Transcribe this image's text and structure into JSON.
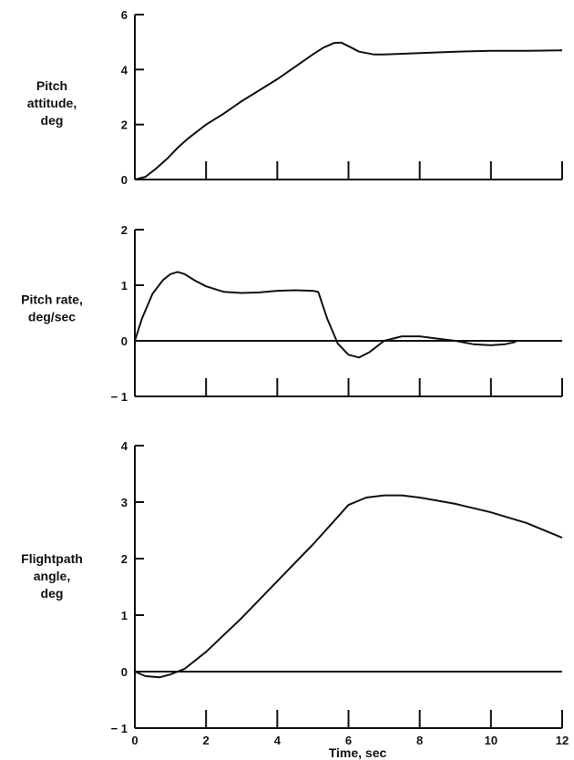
{
  "chart_data": [
    {
      "type": "line",
      "ylabel": [
        "Pitch",
        "attitude,",
        "deg"
      ],
      "ylim": [
        0,
        6
      ],
      "yticks": [
        0,
        2,
        4,
        6
      ],
      "xlim": [
        0,
        12
      ],
      "xticks": [
        0,
        2,
        4,
        6,
        8,
        10,
        12
      ],
      "zero_line": false,
      "series": [
        {
          "x": [
            0,
            0.3,
            0.6,
            0.9,
            1.2,
            1.5,
            2,
            2.5,
            3,
            3.5,
            4,
            4.5,
            5,
            5.3,
            5.6,
            5.8,
            6.0,
            6.3,
            6.7,
            7,
            8,
            9,
            10,
            11,
            12
          ],
          "values": [
            0,
            0.1,
            0.4,
            0.75,
            1.15,
            1.5,
            2.0,
            2.4,
            2.85,
            3.25,
            3.65,
            4.1,
            4.55,
            4.8,
            4.97,
            4.98,
            4.85,
            4.65,
            4.55,
            4.55,
            4.6,
            4.65,
            4.68,
            4.68,
            4.7
          ]
        }
      ]
    },
    {
      "type": "line",
      "ylabel": [
        "Pitch rate,",
        "deg/sec"
      ],
      "ylim": [
        -1,
        2
      ],
      "yticks": [
        -1,
        0,
        1,
        2
      ],
      "xlim": [
        0,
        12
      ],
      "xticks": [
        0,
        2,
        4,
        6,
        8,
        10,
        12
      ],
      "zero_line": true,
      "series": [
        {
          "x": [
            0,
            0.2,
            0.5,
            0.8,
            1.0,
            1.2,
            1.4,
            1.7,
            2.0,
            2.5,
            3,
            3.5,
            4,
            4.5,
            5,
            5.15,
            5.4,
            5.7,
            6.0,
            6.3,
            6.6,
            7.0,
            7.5,
            8.0,
            8.5,
            9.0,
            9.5,
            10.0,
            10.4,
            10.7
          ],
          "values": [
            0,
            0.4,
            0.85,
            1.1,
            1.2,
            1.24,
            1.2,
            1.08,
            0.98,
            0.88,
            0.86,
            0.87,
            0.9,
            0.91,
            0.9,
            0.88,
            0.4,
            -0.05,
            -0.25,
            -0.3,
            -0.2,
            0.0,
            0.08,
            0.08,
            0.04,
            0.0,
            -0.06,
            -0.08,
            -0.06,
            -0.02
          ]
        }
      ]
    },
    {
      "type": "line",
      "ylabel": [
        "Flightpath",
        "angle,",
        "deg"
      ],
      "ylim": [
        -1,
        4
      ],
      "yticks": [
        -1,
        0,
        1,
        2,
        3,
        4
      ],
      "xlim": [
        0,
        12
      ],
      "xticks": [
        0,
        2,
        4,
        6,
        8,
        10,
        12
      ],
      "xlabel": "Time, sec",
      "zero_line": true,
      "series": [
        {
          "x": [
            0,
            0.3,
            0.7,
            1.0,
            1.4,
            2,
            3,
            4,
            5,
            5.5,
            6.0,
            6.5,
            7.0,
            7.5,
            8,
            9,
            10,
            11,
            12
          ],
          "values": [
            0,
            -0.08,
            -0.1,
            -0.05,
            0.05,
            0.35,
            0.95,
            1.6,
            2.25,
            2.6,
            2.95,
            3.08,
            3.12,
            3.12,
            3.08,
            2.97,
            2.82,
            2.63,
            2.37
          ]
        }
      ]
    }
  ]
}
